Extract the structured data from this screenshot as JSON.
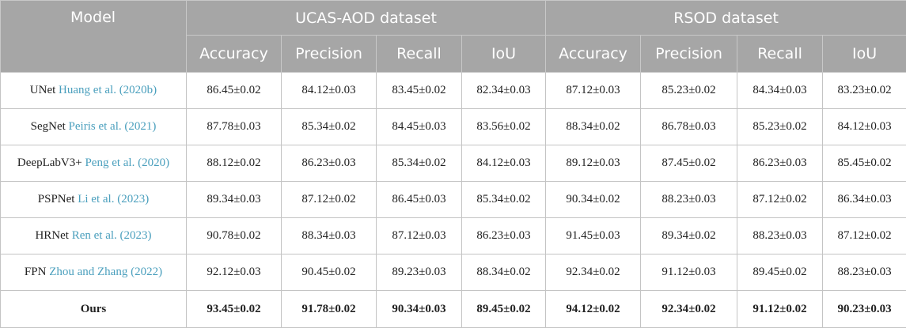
{
  "header": {
    "model": "Model",
    "group1": "UCAS-AOD dataset",
    "group2": "RSOD dataset",
    "metrics": [
      "Accuracy",
      "Precision",
      "Recall",
      "IoU",
      "Accuracy",
      "Precision",
      "Recall",
      "IoU"
    ]
  },
  "rows": [
    {
      "model": "UNet",
      "ref": "Huang et al. (2020b)",
      "values": [
        "86.45±0.02",
        "84.12±0.03",
        "83.45±0.02",
        "82.34±0.03",
        "87.12±0.03",
        "85.23±0.02",
        "84.34±0.03",
        "83.23±0.02"
      ]
    },
    {
      "model": "SegNet",
      "ref": "Peiris et al. (2021)",
      "values": [
        "87.78±0.03",
        "85.34±0.02",
        "84.45±0.03",
        "83.56±0.02",
        "88.34±0.02",
        "86.78±0.03",
        "85.23±0.02",
        "84.12±0.03"
      ]
    },
    {
      "model": "DeepLabV3+",
      "ref": "Peng et al. (2020)",
      "values": [
        "88.12±0.02",
        "86.23±0.03",
        "85.34±0.02",
        "84.12±0.03",
        "89.12±0.03",
        "87.45±0.02",
        "86.23±0.03",
        "85.45±0.02"
      ]
    },
    {
      "model": "PSPNet",
      "ref": "Li et al. (2023)",
      "values": [
        "89.34±0.03",
        "87.12±0.02",
        "86.45±0.03",
        "85.34±0.02",
        "90.34±0.02",
        "88.23±0.03",
        "87.12±0.02",
        "86.34±0.03"
      ]
    },
    {
      "model": "HRNet",
      "ref": "Ren et al. (2023)",
      "values": [
        "90.78±0.02",
        "88.34±0.03",
        "87.12±0.03",
        "86.23±0.03",
        "91.45±0.03",
        "89.34±0.02",
        "88.23±0.03",
        "87.12±0.02"
      ]
    },
    {
      "model": "FPN",
      "ref": "Zhou and Zhang (2022)",
      "values": [
        "92.12±0.03",
        "90.45±0.02",
        "89.23±0.03",
        "88.34±0.02",
        "92.34±0.02",
        "91.12±0.03",
        "89.45±0.02",
        "88.23±0.03"
      ]
    },
    {
      "model": "Ours",
      "ref": "",
      "values": [
        "93.45±0.02",
        "91.78±0.02",
        "90.34±0.03",
        "89.45±0.02",
        "94.12±0.02",
        "92.34±0.02",
        "91.12±0.02",
        "90.23±0.03"
      ]
    }
  ]
}
